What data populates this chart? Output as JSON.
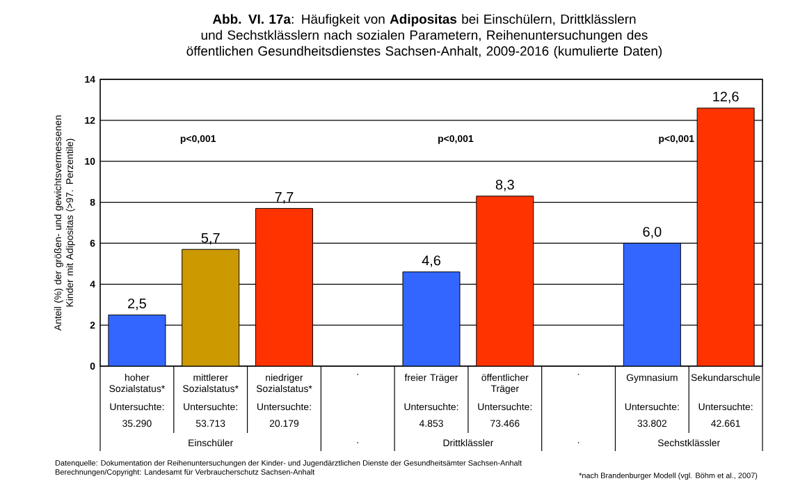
{
  "chart_data": {
    "type": "bar",
    "title": "**Abb. VI. 17a**: Häufigkeit von **Adipositas** bei Einschülern, Drittklässlern und Sechstklässlern nach sozialen Parametern, Reihenuntersuchungen des öffentlichen Gesundheitsdienstes Sachsen-Anhalt, 2009-2016 (kumulierte Daten)",
    "ylabel": "Anteil (%) der größen- und gewichtsvermessenen Kinder mit Adipositas (>97. Perzentile)",
    "categories": [
      "hoher Sozialstatus*",
      "mittlerer Sozialstatus*",
      "niedriger Sozialstatus*",
      ".",
      "freier Träger",
      "öffentlicher Träger",
      ".",
      "Gymnasium",
      "Sekundarschule"
    ],
    "values": [
      2.5,
      5.7,
      7.7,
      null,
      4.6,
      8.3,
      null,
      6.0,
      12.6
    ],
    "value_labels": [
      "2,5",
      "5,7",
      "7,7",
      null,
      "4,6",
      "8,3",
      null,
      "6,0",
      "12,6"
    ],
    "colors": [
      "#3366ff",
      "#cc9900",
      "#ff3300",
      null,
      "#3366ff",
      "#ff3300",
      null,
      "#3366ff",
      "#ff3300"
    ],
    "ylim": [
      0,
      14
    ],
    "yticks": [
      0,
      2,
      4,
      6,
      8,
      10,
      12,
      14
    ],
    "grid": "y",
    "annotations": [
      "p<0,001",
      "p<0,001",
      "p<0,001",
      "Untersuchte: 35.290",
      "Untersuchte: 53.713",
      "Untersuchte: 20.179",
      "Untersuchte: 4.853",
      "Untersuchte: 73.466",
      "Untersuchte: 33.802",
      "Untersuchte: 42.661",
      "Einschüler",
      ".",
      "Drittklässler",
      ".",
      "Sechstklässler",
      "Datenquelle: Dokumentation der Reihenuntersuchungen der Kinder- und Jugendärztlichen Dienste der Gesundheitsämter Sachsen-Anhalt",
      "Berechnungen/Copyright: Landesamt für Verbraucherschutz Sachsen-Anhalt",
      "*nach Brandenburger Modell (vgl. Böhm et al., 2007)"
    ]
  }
}
